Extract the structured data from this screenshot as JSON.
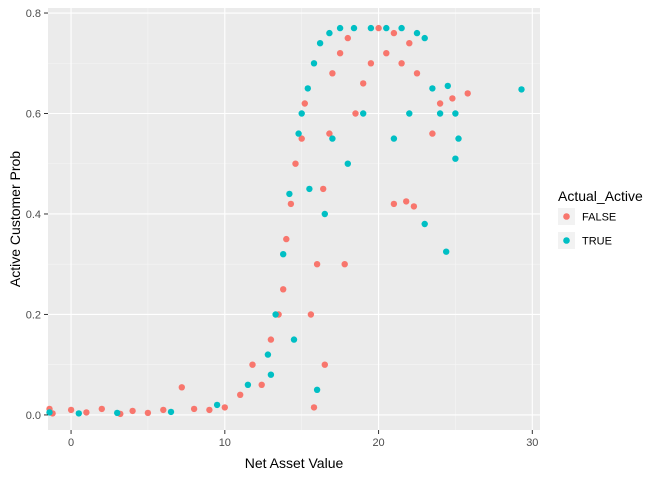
{
  "chart_data": {
    "type": "scatter",
    "xlabel": "Net Asset Value",
    "ylabel": "Active Customer Prob",
    "xlim": [
      -1.5,
      30.5
    ],
    "ylim": [
      -0.03,
      0.81
    ],
    "x_ticks": [
      0,
      10,
      20,
      30
    ],
    "x_tick_labels": [
      "0",
      "10",
      "20",
      "30"
    ],
    "y_ticks": [
      0.0,
      0.2,
      0.4,
      0.6,
      0.8
    ],
    "y_tick_labels": [
      "0.0",
      "0.2",
      "0.4",
      "0.6",
      "0.8"
    ],
    "grid": true,
    "legend": {
      "title": "Actual_Active",
      "placement": "right"
    },
    "series": [
      {
        "name": "FALSE",
        "color": "#F8766D",
        "points": [
          [
            -1.4,
            0.012
          ],
          [
            -1.2,
            0.003
          ],
          [
            0.0,
            0.01
          ],
          [
            1.0,
            0.005
          ],
          [
            2.0,
            0.012
          ],
          [
            3.2,
            0.002
          ],
          [
            4.0,
            0.008
          ],
          [
            5.0,
            0.004
          ],
          [
            6.0,
            0.01
          ],
          [
            7.2,
            0.055
          ],
          [
            8.0,
            0.012
          ],
          [
            9.0,
            0.01
          ],
          [
            10.0,
            0.015
          ],
          [
            11.0,
            0.04
          ],
          [
            11.8,
            0.1
          ],
          [
            12.4,
            0.06
          ],
          [
            13.0,
            0.15
          ],
          [
            13.5,
            0.2
          ],
          [
            13.8,
            0.25
          ],
          [
            14.0,
            0.35
          ],
          [
            14.3,
            0.42
          ],
          [
            14.6,
            0.5
          ],
          [
            15.0,
            0.55
          ],
          [
            15.2,
            0.62
          ],
          [
            15.6,
            0.2
          ],
          [
            16.0,
            0.3
          ],
          [
            16.4,
            0.45
          ],
          [
            16.8,
            0.56
          ],
          [
            17.0,
            0.68
          ],
          [
            17.5,
            0.72
          ],
          [
            18.0,
            0.75
          ],
          [
            18.5,
            0.6
          ],
          [
            19.0,
            0.66
          ],
          [
            19.5,
            0.7
          ],
          [
            20.0,
            0.77
          ],
          [
            20.5,
            0.72
          ],
          [
            21.0,
            0.76
          ],
          [
            21.5,
            0.7
          ],
          [
            22.0,
            0.74
          ],
          [
            22.5,
            0.68
          ],
          [
            21.0,
            0.42
          ],
          [
            21.8,
            0.425
          ],
          [
            22.3,
            0.415
          ],
          [
            23.5,
            0.56
          ],
          [
            24.0,
            0.62
          ],
          [
            24.8,
            0.63
          ],
          [
            25.8,
            0.64
          ],
          [
            17.8,
            0.3
          ],
          [
            16.5,
            0.1
          ],
          [
            15.8,
            0.015
          ]
        ]
      },
      {
        "name": "TRUE",
        "color": "#00BFC4",
        "points": [
          [
            -1.4,
            0.005
          ],
          [
            0.5,
            0.003
          ],
          [
            3.0,
            0.004
          ],
          [
            6.5,
            0.006
          ],
          [
            9.5,
            0.02
          ],
          [
            11.5,
            0.06
          ],
          [
            12.8,
            0.12
          ],
          [
            13.3,
            0.2
          ],
          [
            13.8,
            0.32
          ],
          [
            14.2,
            0.44
          ],
          [
            14.8,
            0.56
          ],
          [
            15.0,
            0.6
          ],
          [
            15.4,
            0.65
          ],
          [
            15.8,
            0.7
          ],
          [
            16.2,
            0.74
          ],
          [
            16.8,
            0.76
          ],
          [
            17.5,
            0.77
          ],
          [
            18.4,
            0.77
          ],
          [
            19.5,
            0.77
          ],
          [
            20.5,
            0.77
          ],
          [
            21.5,
            0.77
          ],
          [
            22.5,
            0.76
          ],
          [
            23.0,
            0.75
          ],
          [
            23.5,
            0.65
          ],
          [
            24.0,
            0.6
          ],
          [
            24.5,
            0.655
          ],
          [
            25.0,
            0.6
          ],
          [
            25.2,
            0.55
          ],
          [
            25.0,
            0.51
          ],
          [
            22.0,
            0.6
          ],
          [
            21.0,
            0.55
          ],
          [
            23.0,
            0.38
          ],
          [
            24.4,
            0.325
          ],
          [
            29.3,
            0.648
          ],
          [
            16.5,
            0.4
          ],
          [
            15.5,
            0.45
          ],
          [
            17.0,
            0.55
          ],
          [
            18.0,
            0.5
          ],
          [
            19.0,
            0.6
          ],
          [
            14.5,
            0.15
          ],
          [
            13.0,
            0.08
          ],
          [
            16.0,
            0.05
          ]
        ]
      }
    ]
  }
}
